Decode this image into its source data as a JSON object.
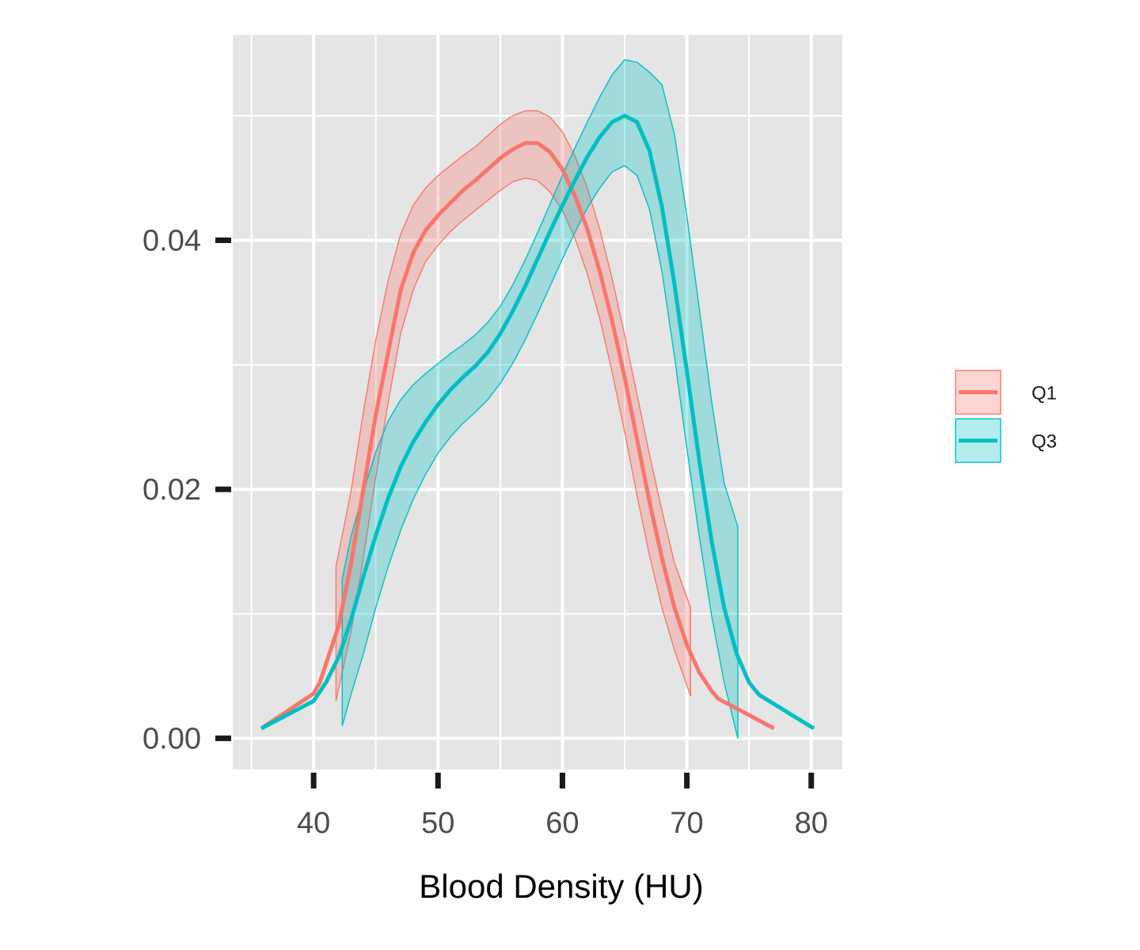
{
  "chart_data": {
    "type": "line",
    "subtype": "density-with-confidence-band",
    "title": "",
    "xlabel": "Blood Density (HU)",
    "ylabel": "",
    "xlim": [
      33.5,
      82.5
    ],
    "ylim": [
      -0.0025,
      0.0565
    ],
    "x_ticks": [
      40,
      50,
      60,
      70,
      80
    ],
    "x_tick_labels": [
      "40",
      "50",
      "60",
      "70",
      "80"
    ],
    "y_ticks": [
      0.0,
      0.02,
      0.04
    ],
    "y_tick_labels": [
      "0.00",
      "0.02",
      "0.04"
    ],
    "grid": true,
    "legend_position": "right",
    "series": [
      {
        "name": "Q1",
        "color": "#F8766D",
        "line": [
          [
            35.8,
            0.0008
          ],
          [
            40.0,
            0.0036
          ],
          [
            40.5,
            0.0045
          ],
          [
            41.0,
            0.006
          ],
          [
            42.0,
            0.009
          ],
          [
            43.0,
            0.014
          ],
          [
            44.0,
            0.02
          ],
          [
            45.0,
            0.026
          ],
          [
            46.0,
            0.031
          ],
          [
            47.0,
            0.036
          ],
          [
            48.0,
            0.039
          ],
          [
            49.0,
            0.0408
          ],
          [
            50.0,
            0.042
          ],
          [
            51.0,
            0.043
          ],
          [
            52.0,
            0.044
          ],
          [
            53.0,
            0.0448
          ],
          [
            54.0,
            0.0457
          ],
          [
            55.0,
            0.0466
          ],
          [
            56.0,
            0.0473
          ],
          [
            57.0,
            0.0478
          ],
          [
            58.0,
            0.0478
          ],
          [
            59.0,
            0.0471
          ],
          [
            60.0,
            0.0457
          ],
          [
            61.0,
            0.0436
          ],
          [
            62.0,
            0.0409
          ],
          [
            63.0,
            0.0375
          ],
          [
            64.0,
            0.0335
          ],
          [
            65.0,
            0.029
          ],
          [
            66.0,
            0.024
          ],
          [
            67.0,
            0.019
          ],
          [
            68.0,
            0.0145
          ],
          [
            69.0,
            0.0105
          ],
          [
            70.0,
            0.0075
          ],
          [
            71.0,
            0.0053
          ],
          [
            72.0,
            0.0038
          ],
          [
            72.5,
            0.0032
          ],
          [
            77.0,
            0.0008
          ]
        ],
        "band": {
          "x": [
            41.8,
            43.0,
            44.0,
            45.0,
            46.0,
            47.0,
            48.0,
            49.0,
            50.0,
            51.0,
            52.0,
            53.0,
            54.0,
            55.0,
            56.0,
            57.0,
            58.0,
            59.0,
            60.0,
            61.0,
            62.0,
            63.0,
            64.0,
            65.0,
            66.0,
            67.0,
            68.0,
            69.0,
            70.3
          ],
          "lower": [
            0.003,
            0.0085,
            0.0145,
            0.021,
            0.027,
            0.0325,
            0.036,
            0.0383,
            0.0396,
            0.0407,
            0.0416,
            0.0424,
            0.0432,
            0.044,
            0.0447,
            0.045,
            0.0448,
            0.0439,
            0.0424,
            0.0402,
            0.0373,
            0.0337,
            0.0294,
            0.0246,
            0.0195,
            0.0147,
            0.0105,
            0.0071,
            0.0034
          ],
          "upper": [
            0.0138,
            0.0198,
            0.0262,
            0.032,
            0.0368,
            0.0405,
            0.0428,
            0.0442,
            0.0452,
            0.046,
            0.0468,
            0.0475,
            0.0484,
            0.0493,
            0.05,
            0.0504,
            0.0504,
            0.0499,
            0.0487,
            0.0468,
            0.0442,
            0.0409,
            0.0369,
            0.0324,
            0.0276,
            0.0228,
            0.0183,
            0.0141,
            0.0105
          ]
        }
      },
      {
        "name": "Q3",
        "color": "#00BFC4",
        "line": [
          [
            35.8,
            0.0008
          ],
          [
            40.0,
            0.003
          ],
          [
            41.0,
            0.0045
          ],
          [
            42.0,
            0.0065
          ],
          [
            43.0,
            0.0095
          ],
          [
            44.0,
            0.013
          ],
          [
            45.0,
            0.0163
          ],
          [
            46.0,
            0.0193
          ],
          [
            47.0,
            0.0218
          ],
          [
            48.0,
            0.0238
          ],
          [
            49.0,
            0.0254
          ],
          [
            50.0,
            0.0268
          ],
          [
            51.0,
            0.028
          ],
          [
            52.0,
            0.029
          ],
          [
            53.0,
            0.0299
          ],
          [
            54.0,
            0.031
          ],
          [
            55.0,
            0.0325
          ],
          [
            56.0,
            0.0343
          ],
          [
            57.0,
            0.0363
          ],
          [
            58.0,
            0.0385
          ],
          [
            59.0,
            0.0407
          ],
          [
            60.0,
            0.0428
          ],
          [
            61.0,
            0.0448
          ],
          [
            62.0,
            0.0467
          ],
          [
            63.0,
            0.0483
          ],
          [
            64.0,
            0.0495
          ],
          [
            65.0,
            0.05
          ],
          [
            66.0,
            0.0495
          ],
          [
            67.0,
            0.0472
          ],
          [
            68.0,
            0.0427
          ],
          [
            69.0,
            0.0365
          ],
          [
            70.0,
            0.0295
          ],
          [
            71.0,
            0.0223
          ],
          [
            72.0,
            0.0158
          ],
          [
            73.0,
            0.0105
          ],
          [
            74.0,
            0.0068
          ],
          [
            75.0,
            0.0045
          ],
          [
            75.8,
            0.0035
          ],
          [
            80.2,
            0.0008
          ]
        ],
        "band": {
          "x": [
            42.3,
            43.0,
            44.0,
            45.0,
            46.0,
            47.0,
            48.0,
            49.0,
            50.0,
            51.0,
            52.0,
            53.0,
            54.0,
            55.0,
            56.0,
            57.0,
            58.0,
            59.0,
            60.0,
            61.0,
            62.0,
            63.0,
            64.0,
            65.0,
            66.0,
            67.0,
            68.0,
            69.0,
            70.0,
            71.0,
            72.0,
            73.0,
            74.1
          ],
          "lower": [
            0.001,
            0.0035,
            0.0068,
            0.0105,
            0.0138,
            0.0167,
            0.0192,
            0.0212,
            0.0229,
            0.0242,
            0.0253,
            0.0262,
            0.0272,
            0.0285,
            0.0301,
            0.032,
            0.0341,
            0.0363,
            0.0385,
            0.0406,
            0.0426,
            0.0442,
            0.0455,
            0.046,
            0.0452,
            0.0425,
            0.0375,
            0.0307,
            0.0233,
            0.0162,
            0.0098,
            0.0045,
            0.0
          ],
          "upper": [
            0.0128,
            0.0162,
            0.0198,
            0.023,
            0.0255,
            0.0272,
            0.0284,
            0.0293,
            0.0301,
            0.0309,
            0.0316,
            0.0324,
            0.0334,
            0.0347,
            0.0364,
            0.0384,
            0.0406,
            0.0429,
            0.0452,
            0.0474,
            0.0495,
            0.0515,
            0.0533,
            0.0545,
            0.0543,
            0.0535,
            0.0525,
            0.0485,
            0.042,
            0.0345,
            0.027,
            0.0205,
            0.017
          ]
        }
      }
    ]
  }
}
